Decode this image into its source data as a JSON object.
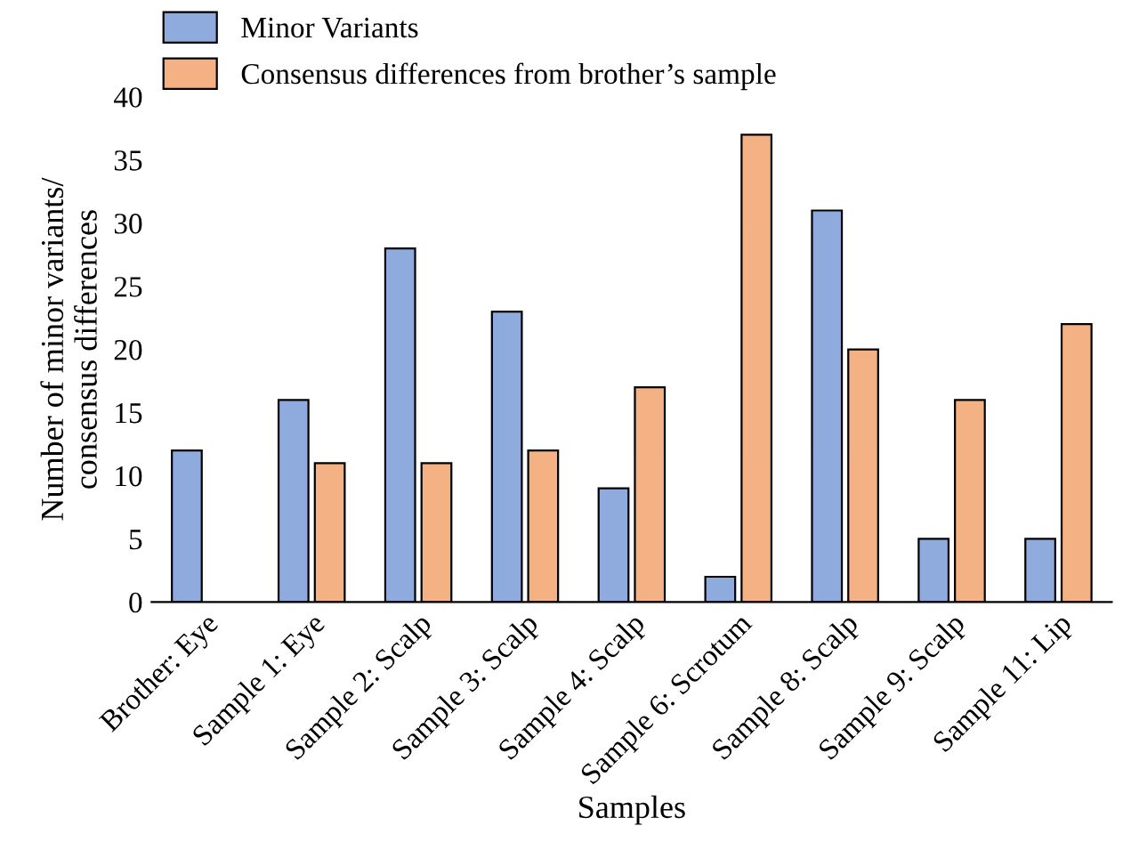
{
  "chart_data": {
    "type": "bar",
    "xlabel": "Samples",
    "ylabel": "Number of minor variants/\nconsensus differences",
    "categories": [
      "Brother: Eye",
      "Sample 1: Eye",
      "Sample 2: Scalp",
      "Sample 3: Scalp",
      "Sample 4: Scalp",
      "Sample 6: Scrotum",
      "Sample 8: Scalp",
      "Sample 9: Scalp",
      "Sample 11: Lip"
    ],
    "series": [
      {
        "name": "Minor Variants",
        "color": "#8faadc",
        "values": [
          12,
          16,
          28,
          23,
          9,
          2,
          31,
          5,
          5
        ]
      },
      {
        "name": "Consensus differences from brother’s sample",
        "color": "#f4b183",
        "values": [
          null,
          11,
          11,
          12,
          17,
          37,
          20,
          16,
          22
        ]
      }
    ],
    "ylim": [
      0,
      40
    ],
    "yticks": [
      0,
      5,
      10,
      15,
      20,
      25,
      30,
      35,
      40
    ],
    "grid": false,
    "legend": "top left"
  }
}
